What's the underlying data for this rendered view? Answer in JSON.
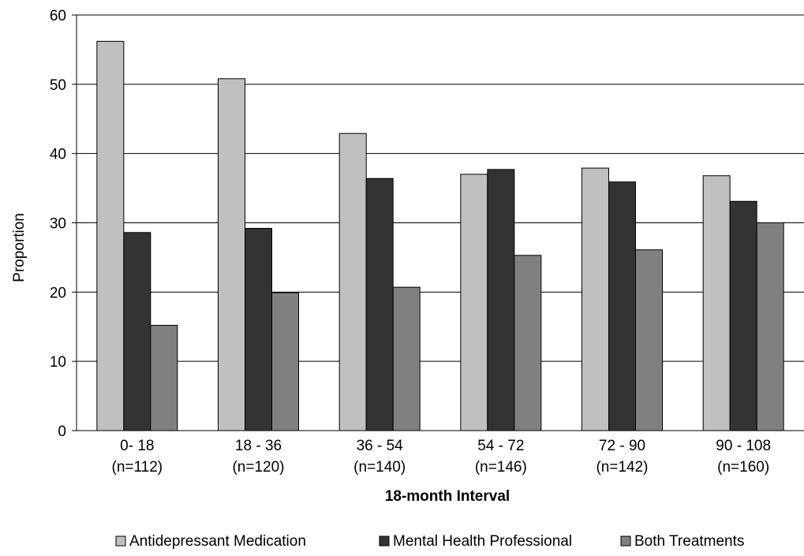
{
  "chart_data": {
    "type": "bar",
    "title": "",
    "xlabel": "18-month Interval",
    "ylabel": "Proportion",
    "ylim": [
      0,
      60
    ],
    "yticks": [
      "0",
      "10",
      "20",
      "30",
      "40",
      "50",
      "60"
    ],
    "grid": true,
    "legend_position": "bottom",
    "categories": [
      [
        "0- 18",
        "(n=112)"
      ],
      [
        "18 - 36",
        "(n=120)"
      ],
      [
        "36 - 54",
        "(n=140)"
      ],
      [
        "54 - 72",
        "(n=146)"
      ],
      [
        "72 - 90",
        "(n=142)"
      ],
      [
        "90 - 108",
        "(n=160)"
      ]
    ],
    "series": [
      {
        "name": "Antidepressant Medication",
        "color": "#c0c0c0",
        "values": [
          56.2,
          50.8,
          42.9,
          37.0,
          37.9,
          36.8
        ]
      },
      {
        "name": "Mental Health Professional",
        "color": "#333333",
        "values": [
          28.6,
          29.2,
          36.4,
          37.7,
          35.9,
          33.1
        ]
      },
      {
        "name": "Both Treatments",
        "color": "#808080",
        "values": [
          15.2,
          19.9,
          20.7,
          25.3,
          26.1,
          30.0
        ]
      }
    ]
  }
}
